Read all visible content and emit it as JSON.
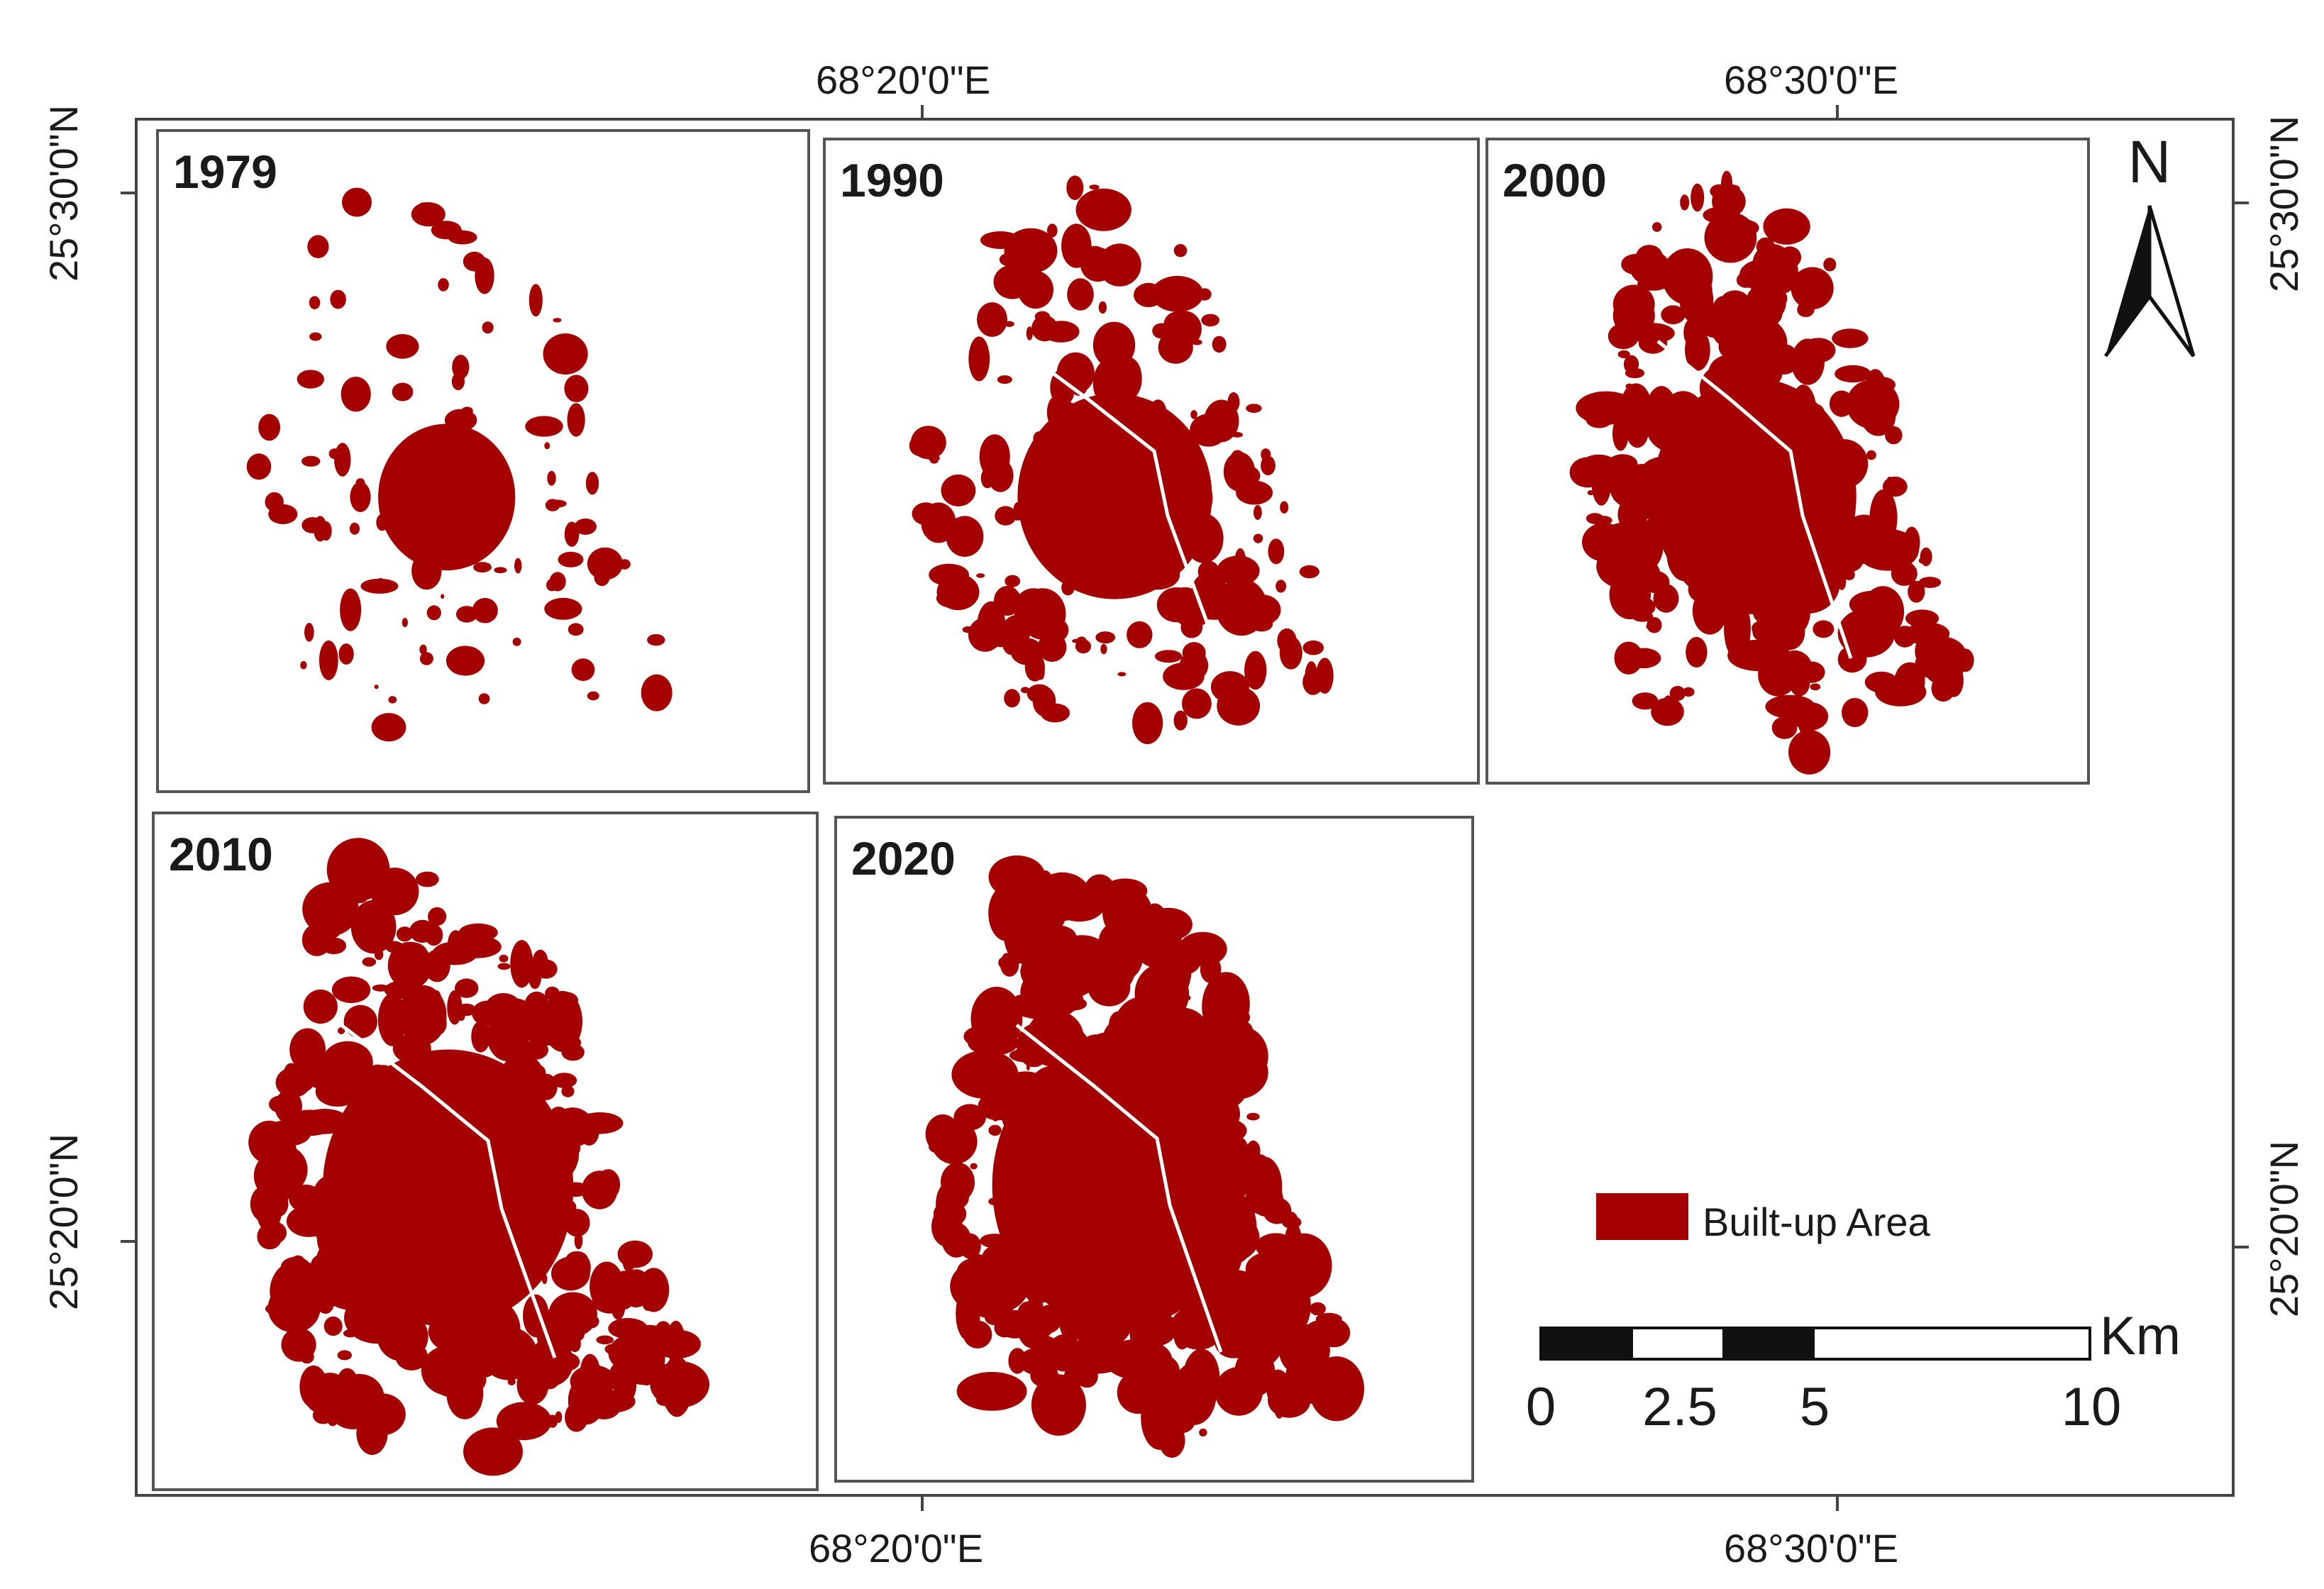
{
  "coordinates": {
    "top_lon_left": "68°20'0\"E",
    "top_lon_right": "68°30'0\"E",
    "bottom_lon_left": "68°20'0\"E",
    "bottom_lon_right": "68°30'0\"E",
    "left_lat_top": "25°30'0\"N",
    "left_lat_bottom": "25°20'0\"N",
    "right_lat_top": "25°30'0\"N",
    "right_lat_bottom": "25°20'0\"N"
  },
  "panels": [
    {
      "year": "1979"
    },
    {
      "year": "1990"
    },
    {
      "year": "2000"
    },
    {
      "year": "2010"
    },
    {
      "year": "2020"
    }
  ],
  "legend": {
    "label": "Built-up Area",
    "color": "#a50000"
  },
  "north_arrow": {
    "label": "N",
    "icon": "north-arrow-icon"
  },
  "scale_bar": {
    "unit": "Km",
    "labels": [
      "0",
      "2.5",
      "5",
      "10"
    ]
  }
}
